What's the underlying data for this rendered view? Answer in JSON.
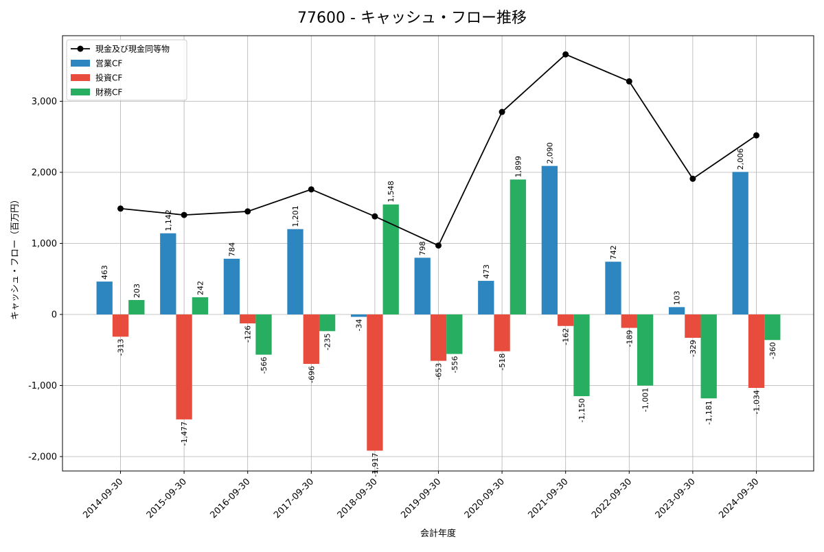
{
  "chart_data": {
    "type": "bar",
    "title": "77600 - キャッシュ・フロー推移",
    "xlabel": "会計年度",
    "ylabel": "キャッシュ・フロー（百万円）",
    "ylim": [
      -2200,
      3900
    ],
    "yticks": [
      -2000,
      -1000,
      0,
      1000,
      2000,
      3000
    ],
    "ytick_labels": [
      "-2,000",
      "-1,000",
      "0",
      "1,000",
      "2,000",
      "3,000"
    ],
    "grid": true,
    "legend_position": "top-left",
    "categories": [
      "2014-09-30",
      "2015-09-30",
      "2016-09-30",
      "2017-09-30",
      "2018-09-30",
      "2019-09-30",
      "2020-09-30",
      "2021-09-30",
      "2022-09-30",
      "2023-09-30",
      "2024-09-30"
    ],
    "series": [
      {
        "name": "営業CF",
        "kind": "bar",
        "color": "#2e86c1",
        "values": [
          463,
          1142,
          784,
          1201,
          -34,
          798,
          473,
          2090,
          742,
          103,
          2006
        ],
        "labels": [
          "463",
          "1,142",
          "784",
          "1,201",
          "-34",
          "798",
          "473",
          "2,090",
          "742",
          "103",
          "2,006"
        ]
      },
      {
        "name": "投資CF",
        "kind": "bar",
        "color": "#e74c3c",
        "values": [
          -313,
          -1477,
          -126,
          -696,
          -1917,
          -653,
          -518,
          -162,
          -189,
          -329,
          -1034
        ],
        "labels": [
          "-313",
          "-1,477",
          "-126",
          "-696",
          "-1,917",
          "-653",
          "-518",
          "-162",
          "-189",
          "-329",
          "-1,034"
        ]
      },
      {
        "name": "財務CF",
        "kind": "bar",
        "color": "#27ae60",
        "values": [
          203,
          242,
          -566,
          -235,
          1548,
          -556,
          1899,
          -1150,
          -1001,
          -1181,
          -360
        ],
        "labels": [
          "203",
          "242",
          "-566",
          "-235",
          "1,548",
          "-556",
          "1,899",
          "-1,150",
          "-1,001",
          "-1,181",
          "-360"
        ]
      },
      {
        "name": "現金及び現金同等物",
        "kind": "line",
        "color": "#000000",
        "values": [
          1490,
          1400,
          1450,
          1760,
          1380,
          970,
          2850,
          3660,
          3280,
          1910,
          2520
        ]
      }
    ]
  }
}
